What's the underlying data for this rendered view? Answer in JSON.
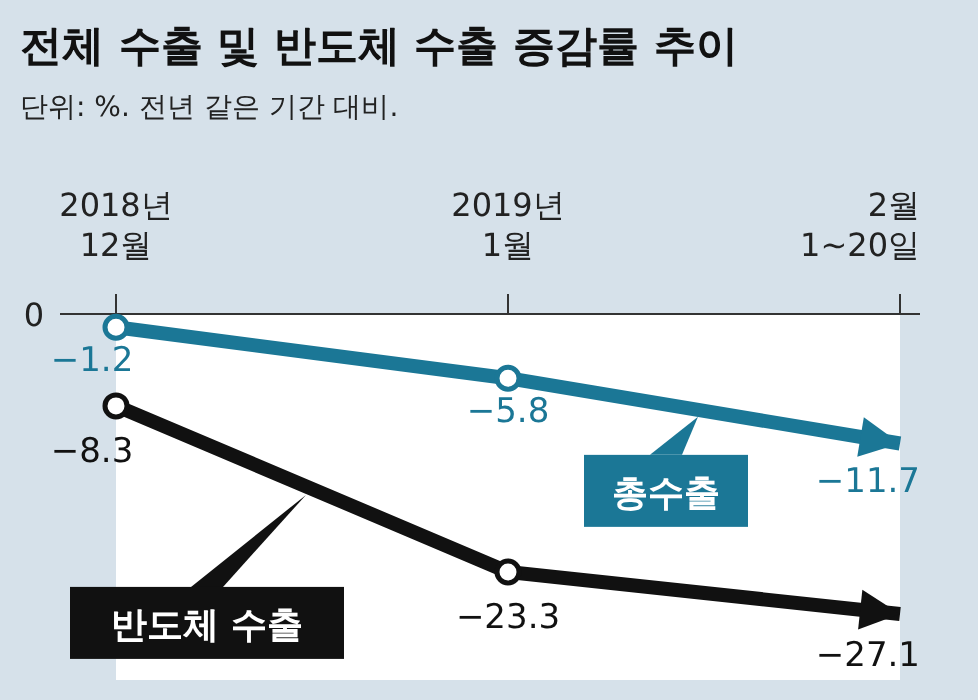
{
  "chart_data": {
    "type": "line",
    "title": "전체 수출 및 반도체 수출 증감률 추이",
    "subtitle": "단위: %. 전년 같은 기간 대비.",
    "categories": [
      "2018년 12월",
      "2019년 1월",
      "2월 1~20일"
    ],
    "series": [
      {
        "name": "총수출",
        "color": "#1b7796",
        "values": [
          -1.2,
          -5.8,
          -11.7
        ]
      },
      {
        "name": "반도체 수출",
        "color": "#111111",
        "values": [
          -8.3,
          -23.3,
          -27.1
        ]
      }
    ],
    "annotations": [
      "0"
    ],
    "data_labels": true,
    "marker": "circle"
  }
}
